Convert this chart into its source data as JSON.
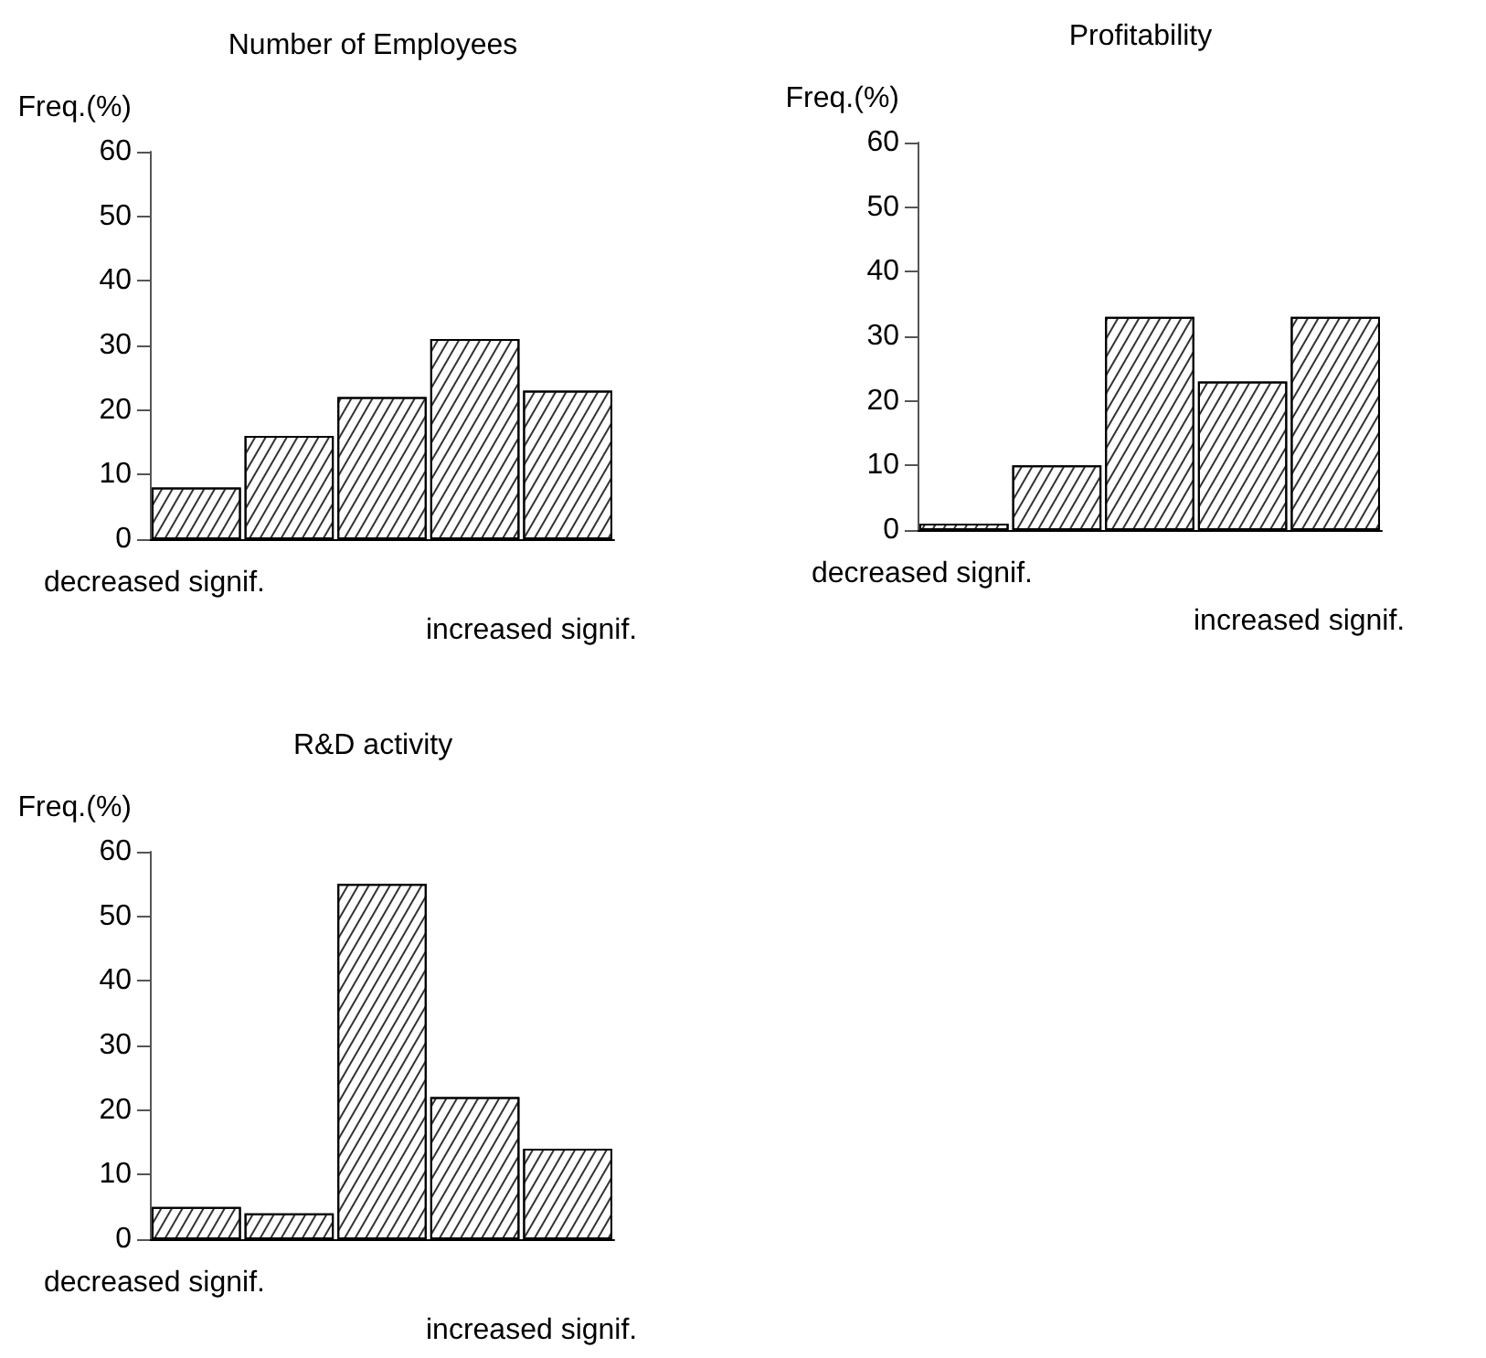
{
  "chart_data": [
    {
      "type": "bar",
      "title": "Number of Employees",
      "ylabel": "Freq.(%)",
      "categories": [
        null,
        null,
        null,
        null,
        null
      ],
      "values": [
        8,
        16,
        22,
        31,
        23
      ],
      "color": "#ffffff",
      "ylim": [
        0,
        60
      ],
      "yticks": [
        0,
        10,
        20,
        30,
        40,
        50,
        60
      ],
      "grid": false,
      "annotations": [
        "decreased signif.",
        "increased signif."
      ]
    },
    {
      "type": "bar",
      "title": "Profitability",
      "ylabel": "Freq.(%)",
      "categories": [
        null,
        null,
        null,
        null,
        null
      ],
      "values": [
        1,
        10,
        33,
        23,
        33
      ],
      "color": "#ffffff",
      "ylim": [
        0,
        60
      ],
      "yticks": [
        0,
        10,
        20,
        30,
        40,
        50,
        60
      ],
      "grid": false,
      "annotations": [
        "decreased signif.",
        "increased signif."
      ]
    },
    {
      "type": "bar",
      "title": "R&D activity",
      "ylabel": "Freq.(%)",
      "categories": [
        null,
        null,
        null,
        null,
        null
      ],
      "values": [
        5,
        4,
        55,
        22,
        14
      ],
      "color": "#ffffff",
      "ylim": [
        0,
        60
      ],
      "yticks": [
        0,
        10,
        20,
        30,
        40,
        50,
        60
      ],
      "grid": false,
      "annotations": [
        "decreased signif.",
        "increased signif."
      ]
    }
  ]
}
